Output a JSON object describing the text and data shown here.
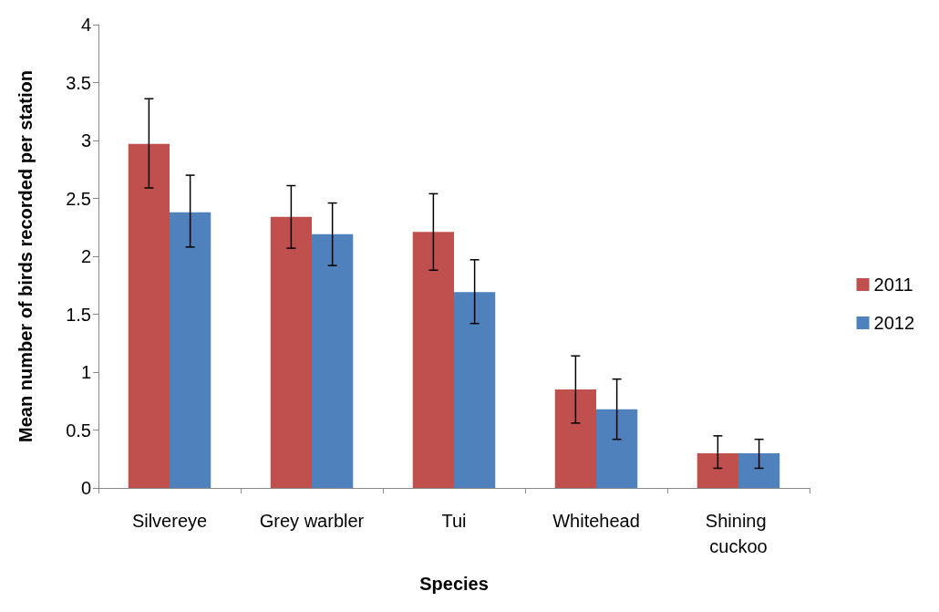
{
  "chart_data": {
    "type": "bar",
    "xlabel": "Species",
    "ylabel": "Mean number of birds recorded per station",
    "categories": [
      "Silvereye",
      "Grey warbler",
      "Tui",
      "Whitehead",
      "Shining cuckoo"
    ],
    "series": [
      {
        "name": "2011",
        "color": "#c0504d",
        "values": [
          2.97,
          2.34,
          2.21,
          0.85,
          0.3
        ],
        "errors": [
          [
            2.59,
            3.36
          ],
          [
            2.07,
            2.61
          ],
          [
            1.88,
            2.54
          ],
          [
            0.56,
            1.14
          ],
          [
            0.17,
            0.45
          ]
        ]
      },
      {
        "name": "2012",
        "color": "#4f81bd",
        "values": [
          2.38,
          2.19,
          1.69,
          0.68,
          0.3
        ],
        "errors": [
          [
            2.08,
            2.7
          ],
          [
            1.92,
            2.46
          ],
          [
            1.42,
            1.97
          ],
          [
            0.42,
            0.94
          ],
          [
            0.17,
            0.42
          ]
        ]
      }
    ],
    "ylim": [
      0,
      4
    ],
    "yticks": [
      0,
      0.5,
      1,
      1.5,
      2,
      2.5,
      3,
      3.5,
      4
    ],
    "grid": false,
    "legend": "right"
  }
}
